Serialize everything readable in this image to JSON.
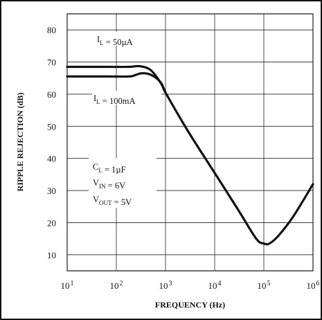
{
  "chart_data": {
    "type": "line",
    "title": "",
    "xlabel": "FREQUENCY (Hz)",
    "ylabel": "RIPPLE REJECTION (dB)",
    "xscale": "log",
    "xlim": [
      10,
      1000000
    ],
    "ylim": [
      5,
      85
    ],
    "grid": true,
    "x_ticks": [
      {
        "value": 10,
        "base": "10",
        "exp": "1"
      },
      {
        "value": 100,
        "base": "10",
        "exp": "2"
      },
      {
        "value": 1000,
        "base": "10",
        "exp": "3"
      },
      {
        "value": 10000,
        "base": "10",
        "exp": "4"
      },
      {
        "value": 100000,
        "base": "10",
        "exp": "5"
      },
      {
        "value": 1000000,
        "base": "10",
        "exp": "6"
      }
    ],
    "y_ticks": [
      {
        "value": 80,
        "label": "80"
      },
      {
        "value": 70,
        "label": "70"
      },
      {
        "value": 60,
        "label": "60"
      },
      {
        "value": 50,
        "label": "50"
      },
      {
        "value": 40,
        "label": "40"
      },
      {
        "value": 30,
        "label": "30"
      },
      {
        "value": 20,
        "label": "20"
      },
      {
        "value": 10,
        "label": "10"
      }
    ],
    "series": [
      {
        "name": "IL = 50µA",
        "x": [
          10,
          60,
          180,
          300,
          500,
          800,
          1000
        ],
        "y": [
          68.5,
          68.5,
          68.5,
          68.7,
          67.5,
          63.5,
          60.5
        ]
      },
      {
        "name": "IL = 100mA",
        "x": [
          10,
          60,
          180,
          250,
          320,
          450,
          650,
          850,
          1000,
          3000,
          10000,
          30000,
          70000,
          100000,
          130000,
          200000,
          400000,
          1000000
        ],
        "y": [
          65.5,
          65.5,
          65.5,
          66,
          66.5,
          66.3,
          65,
          63,
          60.5,
          48,
          35.5,
          24,
          15,
          13.5,
          13.5,
          16,
          22,
          32
        ]
      }
    ],
    "annotations": [
      {
        "id": "il-50ua",
        "parts": [
          {
            "t": "I"
          },
          {
            "t": "L",
            "sub": true
          },
          {
            "t": " = 50µA"
          }
        ]
      },
      {
        "id": "il-100ma",
        "parts": [
          {
            "t": "I"
          },
          {
            "t": "L",
            "sub": true
          },
          {
            "t": " = 100mA"
          }
        ]
      },
      {
        "id": "cl",
        "parts": [
          {
            "t": "C"
          },
          {
            "t": "L",
            "sub": true
          },
          {
            "t": " = 1µF"
          }
        ]
      },
      {
        "id": "vin",
        "parts": [
          {
            "t": "V"
          },
          {
            "t": "IN",
            "sub": true
          },
          {
            "t": " = 6V"
          }
        ]
      },
      {
        "id": "vout",
        "parts": [
          {
            "t": "V"
          },
          {
            "t": "OUT",
            "sub": true
          },
          {
            "t": " = 5V"
          }
        ]
      }
    ]
  }
}
